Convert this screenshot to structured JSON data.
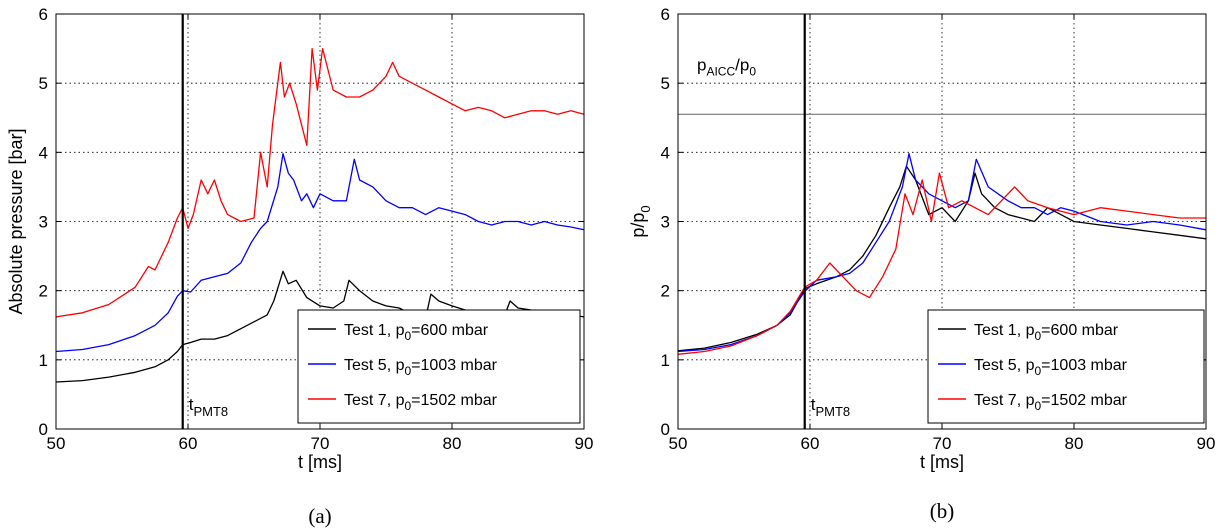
{
  "chart_data": [
    {
      "type": "line",
      "panel_label": "(a)",
      "xlabel": "t [ms]",
      "ylabel": "Absolute pressure [bar]",
      "xlim": [
        50,
        90
      ],
      "ylim": [
        0,
        6
      ],
      "xticks": [
        50,
        60,
        70,
        80,
        90
      ],
      "yticks": [
        0,
        1,
        2,
        3,
        4,
        5,
        6
      ],
      "grid": "dotted",
      "legend_position": "bottom-right",
      "vline": {
        "x": 59.6,
        "label_main": "t",
        "label_sub": "PMT8"
      },
      "series": [
        {
          "name": "Test 1, p0=600 mbar",
          "legend_pre": "Test 1, p",
          "legend_sub": "0",
          "legend_post": "=600 mbar",
          "color": "#000000",
          "x": [
            50,
            52,
            54,
            56,
            57.5,
            58.5,
            59.2,
            59.6,
            60.2,
            61,
            62,
            63,
            64,
            65,
            66,
            66.5,
            67.2,
            67.6,
            68.2,
            69,
            70,
            71,
            71.8,
            72.2,
            73,
            74,
            75,
            76,
            77,
            78,
            78.4,
            79,
            80,
            81,
            82,
            83,
            84,
            84.4,
            85,
            86,
            87,
            88,
            89,
            90
          ],
          "y": [
            0.68,
            0.7,
            0.75,
            0.82,
            0.9,
            1.0,
            1.12,
            1.22,
            1.25,
            1.3,
            1.3,
            1.35,
            1.45,
            1.55,
            1.65,
            1.85,
            2.28,
            2.1,
            2.15,
            1.9,
            1.78,
            1.75,
            1.85,
            2.15,
            2.0,
            1.85,
            1.78,
            1.75,
            1.65,
            1.6,
            1.95,
            1.85,
            1.78,
            1.72,
            1.7,
            1.68,
            1.65,
            1.85,
            1.75,
            1.72,
            1.7,
            1.68,
            1.65,
            1.62
          ]
        },
        {
          "name": "Test 5, p0=1003 mbar",
          "legend_pre": "Test 5, p",
          "legend_sub": "0",
          "legend_post": "=1003 mbar",
          "color": "#0000ff",
          "x": [
            50,
            52,
            54,
            56,
            57.5,
            58.5,
            59.2,
            59.6,
            60.2,
            61,
            62,
            63,
            64,
            64.8,
            65.5,
            66,
            66.8,
            67.2,
            67.6,
            68,
            68.6,
            69,
            69.5,
            70,
            71,
            72,
            72.6,
            73,
            74,
            75,
            76,
            77,
            78,
            79,
            80,
            81,
            82,
            83,
            84,
            85,
            86,
            87,
            88,
            89,
            90
          ],
          "y": [
            1.12,
            1.15,
            1.22,
            1.35,
            1.5,
            1.68,
            1.92,
            2.0,
            1.98,
            2.15,
            2.2,
            2.25,
            2.4,
            2.7,
            2.9,
            3.0,
            3.5,
            3.98,
            3.7,
            3.6,
            3.3,
            3.4,
            3.2,
            3.4,
            3.3,
            3.3,
            3.9,
            3.6,
            3.5,
            3.3,
            3.2,
            3.2,
            3.1,
            3.2,
            3.15,
            3.1,
            3.0,
            2.95,
            3.0,
            3.0,
            2.95,
            3.0,
            2.95,
            2.92,
            2.88
          ]
        },
        {
          "name": "Test 7, p0=1502 mbar",
          "legend_pre": "Test 7, p",
          "legend_sub": "0",
          "legend_post": "=1502 mbar",
          "color": "#ff0000",
          "x": [
            50,
            52,
            54,
            56,
            57,
            57.5,
            58,
            58.5,
            59.2,
            59.6,
            60,
            60.4,
            61,
            61.5,
            62,
            62.5,
            63,
            64,
            65,
            65.5,
            66,
            66.4,
            67,
            67.3,
            67.7,
            68.2,
            69,
            69.4,
            69.8,
            70.2,
            71,
            72,
            73,
            74,
            75,
            75.5,
            76,
            77,
            78,
            79,
            80,
            81,
            82,
            83,
            84,
            85,
            86,
            87,
            88,
            89,
            90
          ],
          "y": [
            1.62,
            1.68,
            1.8,
            2.05,
            2.35,
            2.3,
            2.5,
            2.7,
            3.05,
            3.2,
            2.9,
            3.1,
            3.6,
            3.4,
            3.6,
            3.3,
            3.1,
            3.0,
            3.05,
            4.0,
            3.5,
            4.4,
            5.3,
            4.8,
            5.0,
            4.7,
            4.1,
            5.5,
            4.9,
            5.5,
            4.9,
            4.8,
            4.8,
            4.9,
            5.1,
            5.3,
            5.1,
            5.0,
            4.9,
            4.8,
            4.7,
            4.6,
            4.65,
            4.6,
            4.5,
            4.55,
            4.6,
            4.6,
            4.55,
            4.6,
            4.55
          ]
        }
      ]
    },
    {
      "type": "line",
      "panel_label": "(b)",
      "xlabel": "t [ms]",
      "ylabel_main": "p/p",
      "ylabel_sub": "0",
      "xlim": [
        50,
        90
      ],
      "ylim": [
        0,
        6
      ],
      "xticks": [
        50,
        60,
        70,
        80,
        90
      ],
      "yticks": [
        0,
        1,
        2,
        3,
        4,
        5,
        6
      ],
      "grid": "dotted",
      "legend_position": "bottom-right",
      "vline": {
        "x": 59.6,
        "label_main": "t",
        "label_sub": "PMT8"
      },
      "hline": {
        "y": 4.55,
        "label_p": "p",
        "label_sub1": "AICC",
        "label_mid": "/p",
        "label_sub2": "0"
      },
      "series": [
        {
          "name": "Test 1, p0=600 mbar",
          "legend_pre": "Test 1, p",
          "legend_sub": "0",
          "legend_post": "=600 mbar",
          "color": "#000000",
          "x": [
            50,
            52,
            54,
            56,
            57.5,
            58.5,
            59.6,
            60.5,
            62,
            63,
            64,
            65,
            66,
            66.8,
            67.3,
            68,
            69,
            70,
            71,
            72,
            72.5,
            73,
            74,
            75,
            76,
            77,
            78,
            79,
            80,
            82,
            84,
            86,
            88,
            90
          ],
          "y": [
            1.13,
            1.17,
            1.25,
            1.37,
            1.5,
            1.65,
            2.03,
            2.1,
            2.2,
            2.3,
            2.5,
            2.8,
            3.2,
            3.5,
            3.8,
            3.6,
            3.1,
            3.2,
            3.0,
            3.3,
            3.7,
            3.4,
            3.2,
            3.1,
            3.05,
            3.0,
            3.2,
            3.1,
            3.0,
            2.95,
            2.9,
            2.85,
            2.8,
            2.75
          ]
        },
        {
          "name": "Test 5, p0=1003 mbar",
          "legend_pre": "Test 5, p",
          "legend_sub": "0",
          "legend_post": "=1003 mbar",
          "color": "#0000ff",
          "x": [
            50,
            52,
            54,
            56,
            57.5,
            58.5,
            59.6,
            60.5,
            62,
            63,
            64,
            65,
            66,
            67,
            67.5,
            68,
            69,
            70,
            71,
            72,
            72.6,
            73.5,
            75,
            76,
            77,
            78,
            79,
            80,
            82,
            84,
            86,
            88,
            90
          ],
          "y": [
            1.12,
            1.15,
            1.22,
            1.35,
            1.5,
            1.68,
            1.99,
            2.15,
            2.2,
            2.25,
            2.4,
            2.7,
            3.0,
            3.5,
            3.98,
            3.6,
            3.4,
            3.3,
            3.2,
            3.3,
            3.9,
            3.5,
            3.3,
            3.2,
            3.2,
            3.1,
            3.2,
            3.15,
            3.0,
            2.95,
            3.0,
            2.95,
            2.88
          ]
        },
        {
          "name": "Test 7, p0=1502 mbar",
          "legend_pre": "Test 7, p",
          "legend_sub": "0",
          "legend_post": "=1502 mbar",
          "color": "#ff0000",
          "x": [
            50,
            52,
            54,
            56,
            57.5,
            58.5,
            59.6,
            60.5,
            61.5,
            62.5,
            63.5,
            64.5,
            65.5,
            66.5,
            67.2,
            67.8,
            68.5,
            69.2,
            69.8,
            70.5,
            71.5,
            72.5,
            73.5,
            74.5,
            75.5,
            76.5,
            78,
            80,
            82,
            84,
            86,
            88,
            90
          ],
          "y": [
            1.08,
            1.12,
            1.2,
            1.35,
            1.5,
            1.7,
            2.05,
            2.15,
            2.4,
            2.2,
            2.0,
            1.9,
            2.2,
            2.6,
            3.4,
            3.1,
            3.6,
            3.0,
            3.7,
            3.2,
            3.3,
            3.2,
            3.1,
            3.3,
            3.5,
            3.3,
            3.2,
            3.1,
            3.2,
            3.15,
            3.1,
            3.05,
            3.05
          ]
        }
      ]
    }
  ]
}
